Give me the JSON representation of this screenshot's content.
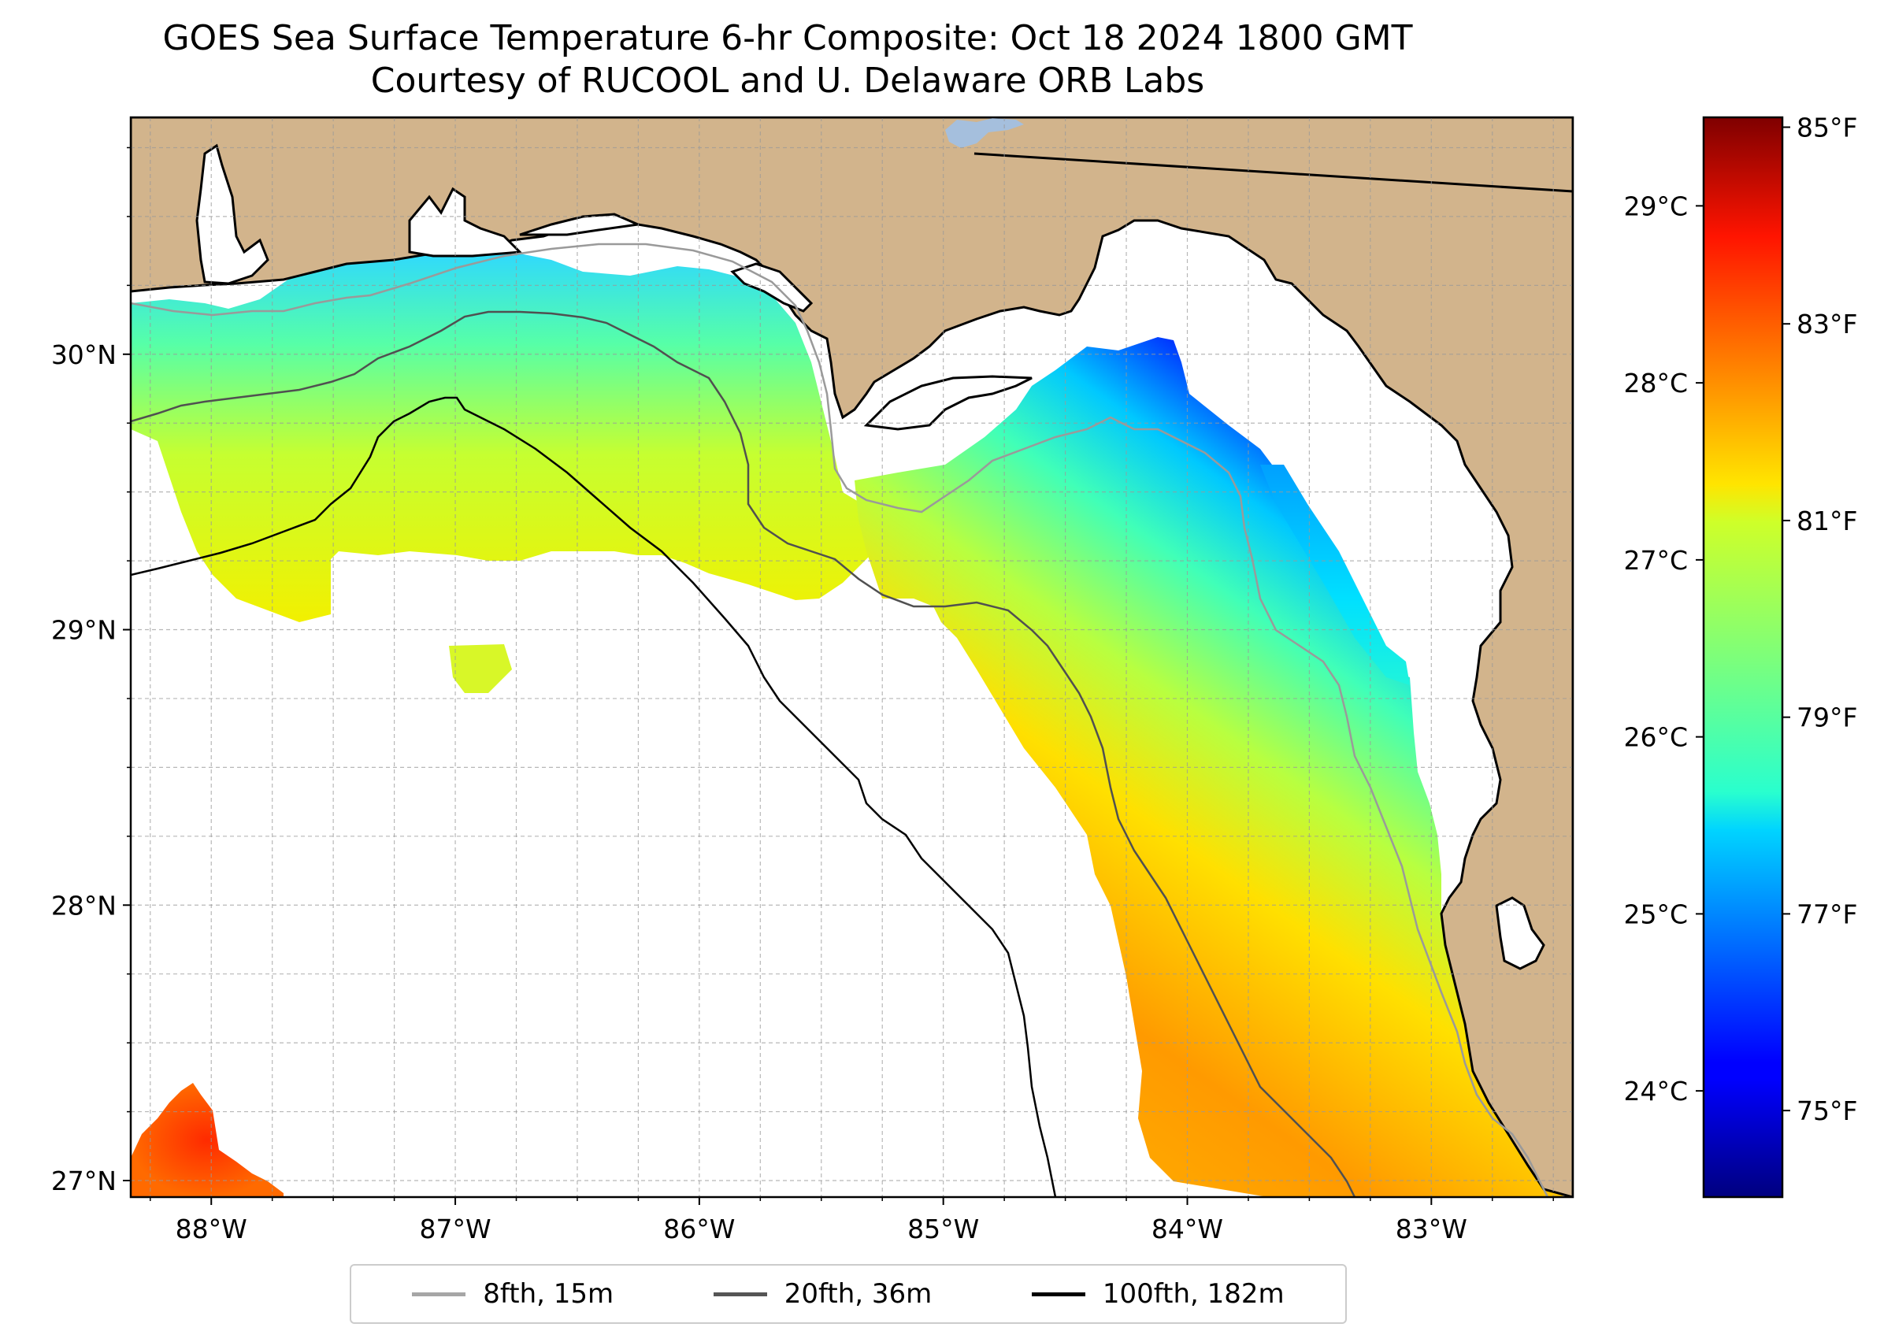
{
  "title": {
    "line1": "GOES Sea Surface Temperature 6-hr Composite: Oct 18 2024 1800 GMT",
    "line2": "Courtesy of RUCOOL and U. Delaware ORB Labs"
  },
  "map": {
    "lon_range": [
      -88.33,
      -82.42
    ],
    "lat_range": [
      26.94,
      30.86
    ],
    "lon_ticks": [
      {
        "value": -88,
        "label": "88°W"
      },
      {
        "value": -87,
        "label": "87°W"
      },
      {
        "value": -86,
        "label": "86°W"
      },
      {
        "value": -85,
        "label": "85°W"
      },
      {
        "value": -84,
        "label": "84°W"
      },
      {
        "value": -83,
        "label": "83°W"
      }
    ],
    "lat_ticks": [
      {
        "value": 30,
        "label": "30°N"
      },
      {
        "value": 29,
        "label": "29°N"
      },
      {
        "value": 28,
        "label": "28°N"
      },
      {
        "value": 27,
        "label": "27°N"
      }
    ],
    "grid": true,
    "land_color": "#d2b48c",
    "ocean_color": "#ffffff"
  },
  "colorbar": {
    "colormap": "jet",
    "range_c": [
      23.4,
      29.5
    ],
    "celsius_ticks": [
      {
        "value": 24,
        "label": "24°C"
      },
      {
        "value": 25,
        "label": "25°C"
      },
      {
        "value": 26,
        "label": "26°C"
      },
      {
        "value": 27,
        "label": "27°C"
      },
      {
        "value": 28,
        "label": "28°C"
      },
      {
        "value": 29,
        "label": "29°C"
      }
    ],
    "fahrenheit_ticks": [
      {
        "value": 75,
        "label": "75°F"
      },
      {
        "value": 77,
        "label": "77°F"
      },
      {
        "value": 79,
        "label": "79°F"
      },
      {
        "value": 81,
        "label": "81°F"
      },
      {
        "value": 83,
        "label": "83°F"
      },
      {
        "value": 85,
        "label": "85°F"
      }
    ]
  },
  "legend": {
    "items": [
      {
        "label": "8fth, 15m",
        "color": "#a6a6a6"
      },
      {
        "label": "20fth, 36m",
        "color": "#555555"
      },
      {
        "label": "100fth, 182m",
        "color": "#000000"
      }
    ]
  }
}
